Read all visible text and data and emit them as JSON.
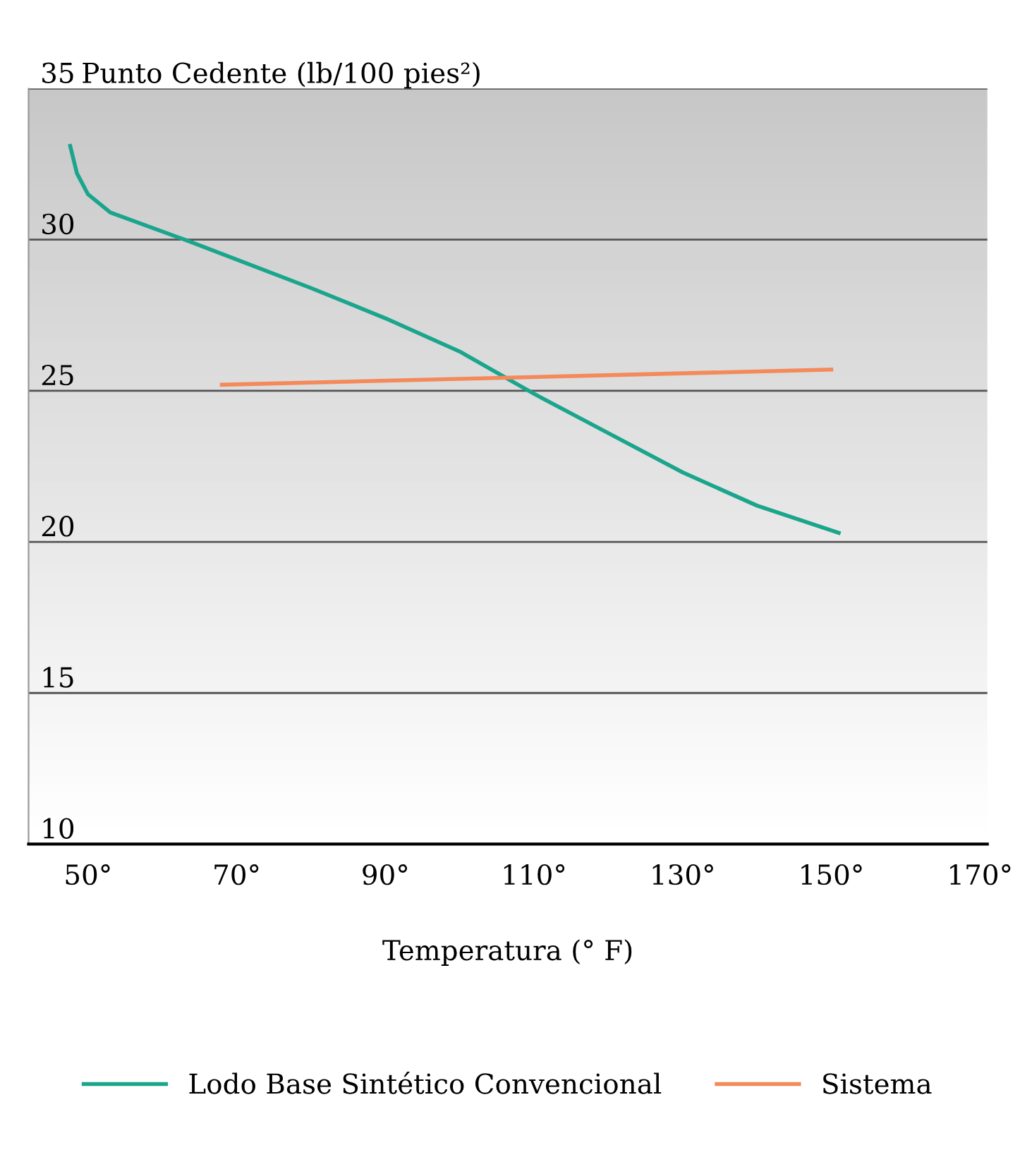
{
  "chart_data": {
    "type": "line",
    "ylabel": "Punto Cedente (lb/100 pies²)",
    "xlabel": "Temperatura (° F)",
    "xlim": [
      42,
      171
    ],
    "xticks": [
      {
        "value": 50,
        "label": "50°"
      },
      {
        "value": 70,
        "label": "70°"
      },
      {
        "value": 90,
        "label": "90°"
      },
      {
        "value": 110,
        "label": "110°"
      },
      {
        "value": 130,
        "label": "130°"
      },
      {
        "value": 150,
        "label": "150°"
      },
      {
        "value": 170,
        "label": "170°"
      }
    ],
    "ylim": [
      10,
      35
    ],
    "yticks": [
      10,
      15,
      20,
      25,
      30,
      35
    ],
    "grid": "y",
    "legend": "bottom",
    "marker": "none",
    "line_style": "solid",
    "series": [
      {
        "name": "Lodo Base Sintético Convencional",
        "color": "#1aa58c",
        "x": [
          47.6,
          48.5,
          50,
          53,
          63,
          80,
          90,
          100,
          110,
          120,
          130,
          140,
          151
        ],
        "values": [
          33.1,
          32.2,
          31.5,
          30.9,
          30.0,
          28.4,
          27.4,
          26.3,
          24.9,
          23.6,
          22.3,
          21.2,
          20.3
        ]
      },
      {
        "name": "Sistema",
        "color": "#f4895a",
        "x": [
          68,
          150
        ],
        "values": [
          25.2,
          25.7
        ]
      }
    ]
  }
}
